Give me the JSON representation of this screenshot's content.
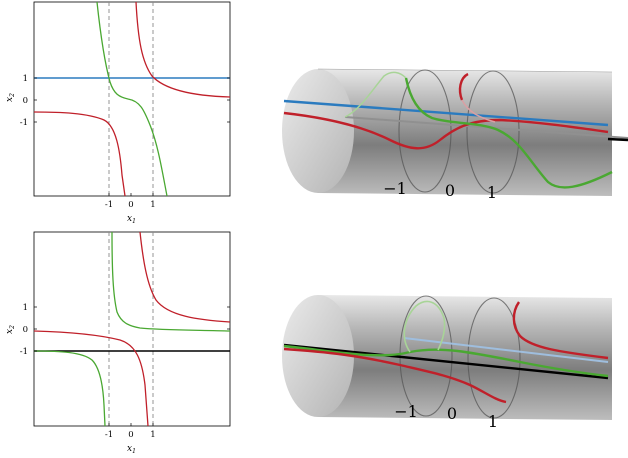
{
  "panels": [
    {
      "xlabel": "x",
      "xlabel_sub": "1",
      "ylabel": "x",
      "ylabel_sub": "2",
      "xticks": [
        "-1",
        "0",
        "1"
      ],
      "yticks": [
        "1",
        "0",
        "-1"
      ]
    },
    {
      "xlabel": "x",
      "xlabel_sub": "1",
      "ylabel": "x",
      "ylabel_sub": "2",
      "xticks": [
        "-1",
        "0",
        "1"
      ],
      "yticks": [
        "1",
        "0",
        "-1"
      ]
    }
  ],
  "cylinders": [
    {
      "labels": [
        "−1",
        "0",
        "1"
      ]
    },
    {
      "labels": [
        "−1",
        "0",
        "1"
      ]
    }
  ],
  "colors": {
    "red": "#c0202a",
    "green": "#4aa832",
    "blue": "#2b7bbf",
    "black": "#000000",
    "dashed": "#8a8a8a"
  }
}
